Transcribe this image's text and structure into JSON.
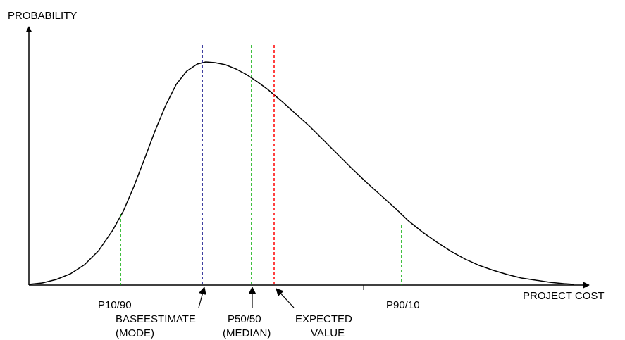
{
  "chart_data": {
    "type": "line",
    "title": "",
    "xlabel": "PROJECT COST",
    "ylabel": "PROBABILITY",
    "grid": false,
    "legend": "none",
    "curve_color": "#000000",
    "markers": [
      {
        "key": "p10",
        "label": "P10/90",
        "sublabel": "",
        "color": "#00aa00",
        "dash": true,
        "arrow": false
      },
      {
        "key": "mode",
        "label": "BASEESTIMATE",
        "sublabel": "(MODE)",
        "color": "#000080",
        "dash": true,
        "arrow": true
      },
      {
        "key": "median",
        "label": "P50/50",
        "sublabel": "(MEDIAN)",
        "color": "#00aa00",
        "dash": true,
        "arrow": true
      },
      {
        "key": "expected",
        "label": "EXPECTED",
        "sublabel": "VALUE",
        "color": "#ff0000",
        "dash": true,
        "arrow": true
      },
      {
        "key": "p90",
        "label": "P90/10",
        "sublabel": "",
        "color": "#00aa00",
        "dash": true,
        "arrow": false
      }
    ]
  }
}
